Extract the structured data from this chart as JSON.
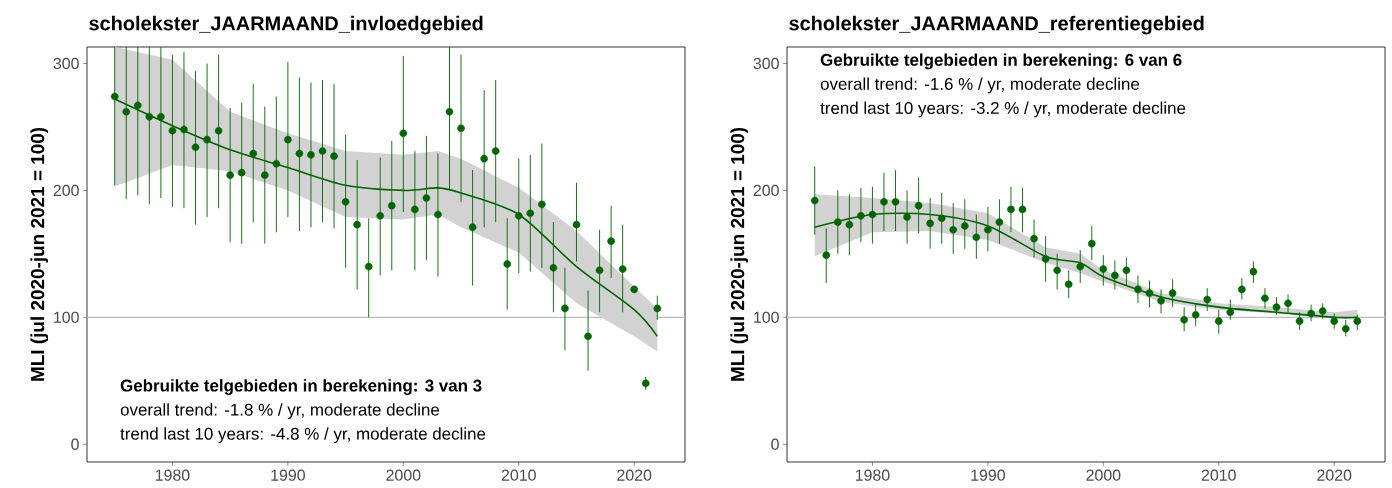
{
  "chart_data": [
    {
      "type": "scatter",
      "title": "scholekster_JAARMAAND_invloedgebied",
      "ylabel": "MLI (jul 2020-jun 2021 = 100)",
      "x": [
        1975,
        1976,
        1977,
        1978,
        1979,
        1980,
        1981,
        1982,
        1983,
        1984,
        1985,
        1986,
        1987,
        1988,
        1989,
        1990,
        1991,
        1992,
        1993,
        1994,
        1995,
        1996,
        1997,
        1998,
        1999,
        2000,
        2001,
        2002,
        2003,
        2004,
        2005,
        2006,
        2007,
        2008,
        2009,
        2010,
        2011,
        2012,
        2013,
        2014,
        2015,
        2016,
        2017,
        2018,
        2019,
        2020,
        2021,
        2022
      ],
      "xlim": [
        1972.6,
        2024.4
      ],
      "xticks": [
        1980,
        1990,
        2000,
        2010,
        2020
      ],
      "ylim": [
        -14,
        313
      ],
      "yticks": [
        0,
        100,
        200,
        300
      ],
      "ref_lines": [
        {
          "axis": "y",
          "value": 100,
          "color": "#bebebe"
        }
      ],
      "annotations": [
        "Gebruikte telgebieden in berekening: 3 van 3",
        "overall trend: -1.8 % / yr, moderate decline",
        "trend last 10 years: -4.8 % / yr, moderate decline"
      ],
      "series": [
        {
          "color": "#006400",
          "marker": "circle",
          "values": [
            274,
            262,
            267,
            258,
            258,
            247,
            248,
            234,
            240,
            247,
            212,
            214,
            229,
            212,
            221,
            240,
            229,
            228,
            231,
            227,
            191,
            173,
            140,
            180,
            188,
            245,
            185,
            194,
            181,
            262,
            249,
            171,
            225,
            231,
            142,
            180,
            182,
            189,
            139,
            107,
            173,
            85,
            137,
            160,
            138,
            122,
            48,
            107
          ],
          "errors": [
            [
              204,
              313
            ],
            [
              193,
              313
            ],
            [
              196,
              313
            ],
            [
              189,
              313
            ],
            [
              194,
              313
            ],
            [
              187,
              307
            ],
            [
              186,
              309
            ],
            [
              173,
              294
            ],
            [
              179,
              300
            ],
            [
              186,
              307
            ],
            [
              159,
              265
            ],
            [
              158,
              269
            ],
            [
              175,
              284
            ],
            [
              158,
              266
            ],
            [
              167,
              274
            ],
            [
              179,
              301
            ],
            [
              168,
              289
            ],
            [
              171,
              285
            ],
            [
              175,
              287
            ],
            [
              170,
              284
            ],
            [
              139,
              244
            ],
            [
              122,
              224
            ],
            [
              100,
              178
            ],
            [
              133,
              226
            ],
            [
              137,
              239
            ],
            [
              183,
              306
            ],
            [
              137,
              231
            ],
            [
              145,
              243
            ],
            [
              132,
              229
            ],
            [
              200,
              313
            ],
            [
              191,
              307
            ],
            [
              125,
              216
            ],
            [
              171,
              279
            ],
            [
              175,
              287
            ],
            [
              106,
              178
            ],
            [
              135,
              225
            ],
            [
              136,
              228
            ],
            [
              139,
              237
            ],
            [
              104,
              175
            ],
            [
              74,
              139
            ],
            [
              144,
              206
            ],
            [
              58,
              121
            ],
            [
              104,
              169
            ],
            [
              131,
              188
            ],
            [
              104,
              173
            ],
            null,
            [
              43,
              53
            ],
            [
              98,
              117
            ]
          ]
        },
        {
          "type": "line",
          "marker": "none",
          "color": "#006400",
          "x": [
            1975,
            1980,
            1985,
            1990,
            1995,
            2000,
            2003,
            2005,
            2010,
            2015,
            2020,
            2022
          ],
          "values": [
            272,
            251,
            232,
            218,
            204,
            200,
            202,
            198,
            181,
            140,
            106,
            85
          ],
          "lower": [
            203,
            220,
            215,
            200,
            179,
            177,
            181,
            171,
            151,
            111,
            85,
            73
          ],
          "upper": [
            313,
            303,
            262,
            245,
            231,
            228,
            231,
            225,
            202,
            168,
            124,
            107
          ]
        }
      ]
    },
    {
      "type": "scatter",
      "title": "scholekster_JAARMAAND_referentiegebied",
      "ylabel": "MLI (jul 2020-jun 2021 = 100)",
      "x": [
        1975,
        1976,
        1977,
        1978,
        1979,
        1980,
        1981,
        1982,
        1983,
        1984,
        1985,
        1986,
        1987,
        1988,
        1989,
        1990,
        1991,
        1992,
        1993,
        1994,
        1995,
        1996,
        1997,
        1998,
        1999,
        2000,
        2001,
        2002,
        2003,
        2004,
        2005,
        2006,
        2007,
        2008,
        2009,
        2010,
        2011,
        2012,
        2013,
        2014,
        2015,
        2016,
        2017,
        2018,
        2019,
        2020,
        2021,
        2022
      ],
      "xlim": [
        1972.6,
        2024.4
      ],
      "xticks": [
        1980,
        1990,
        2000,
        2010,
        2020
      ],
      "ylim": [
        -14,
        313
      ],
      "yticks": [
        0,
        100,
        200,
        300
      ],
      "ref_lines": [
        {
          "axis": "y",
          "value": 100,
          "color": "#bebebe"
        }
      ],
      "annotations": [
        "Gebruikte telgebieden in berekening: 6 van 6",
        "overall trend: -1.6 % / yr, moderate decline",
        "trend last 10 years: -3.2 % / yr, moderate decline"
      ],
      "series": [
        {
          "color": "#006400",
          "marker": "circle",
          "values": [
            192,
            149,
            175,
            173,
            180,
            181,
            191,
            191,
            179,
            188,
            174,
            178,
            169,
            172,
            163,
            169,
            175,
            185,
            185,
            162,
            146,
            137,
            126,
            140,
            158,
            138,
            133,
            137,
            122,
            119,
            113,
            119,
            98,
            102,
            114,
            97,
            104,
            122,
            136,
            115,
            108,
            111,
            97,
            103,
            105,
            97,
            91,
            97
          ],
          "errors": [
            [
              165,
              219
            ],
            [
              127,
              170
            ],
            [
              150,
              200
            ],
            [
              149,
              197
            ],
            [
              159,
              202
            ],
            [
              158,
              203
            ],
            [
              168,
              214
            ],
            [
              168,
              216
            ],
            [
              158,
              200
            ],
            [
              166,
              210
            ],
            [
              154,
              194
            ],
            [
              158,
              198
            ],
            [
              150,
              190
            ],
            [
              154,
              193
            ],
            [
              146,
              181
            ],
            [
              152,
              187
            ],
            [
              158,
              193
            ],
            [
              167,
              203
            ],
            [
              167,
              202
            ],
            [
              147,
              177
            ],
            [
              128,
              164
            ],
            [
              122,
              150
            ],
            [
              115,
              137
            ],
            [
              127,
              153
            ],
            [
              145,
              172
            ],
            [
              125,
              149
            ],
            [
              122,
              145
            ],
            [
              125,
              147
            ],
            [
              111,
              133
            ],
            [
              108,
              129
            ],
            [
              103,
              122
            ],
            [
              108,
              130
            ],
            [
              89,
              108
            ],
            [
              93,
              111
            ],
            [
              105,
              123
            ],
            [
              87,
              106
            ],
            [
              98,
              114
            ],
            [
              114,
              131
            ],
            [
              127,
              144
            ],
            [
              107,
              123
            ],
            [
              102,
              116
            ],
            [
              104,
              118
            ],
            [
              90,
              104
            ],
            [
              97,
              110
            ],
            [
              99,
              111
            ],
            [
              91,
              103
            ],
            [
              85,
              98
            ],
            [
              90,
              102
            ]
          ]
        },
        {
          "type": "line",
          "marker": "none",
          "color": "#006400",
          "x": [
            1975,
            1980,
            1985,
            1990,
            1995,
            1998,
            2000,
            2005,
            2010,
            2015,
            2020,
            2022
          ],
          "values": [
            171,
            181,
            181,
            172,
            148,
            143,
            132,
            116,
            108,
            104,
            100,
            100
          ],
          "lower": [
            148,
            167,
            168,
            161,
            143,
            135,
            128,
            112,
            106,
            103,
            99,
            98
          ],
          "upper": [
            197,
            194,
            190,
            182,
            155,
            150,
            137,
            119,
            111,
            108,
            104,
            106
          ]
        }
      ]
    }
  ]
}
